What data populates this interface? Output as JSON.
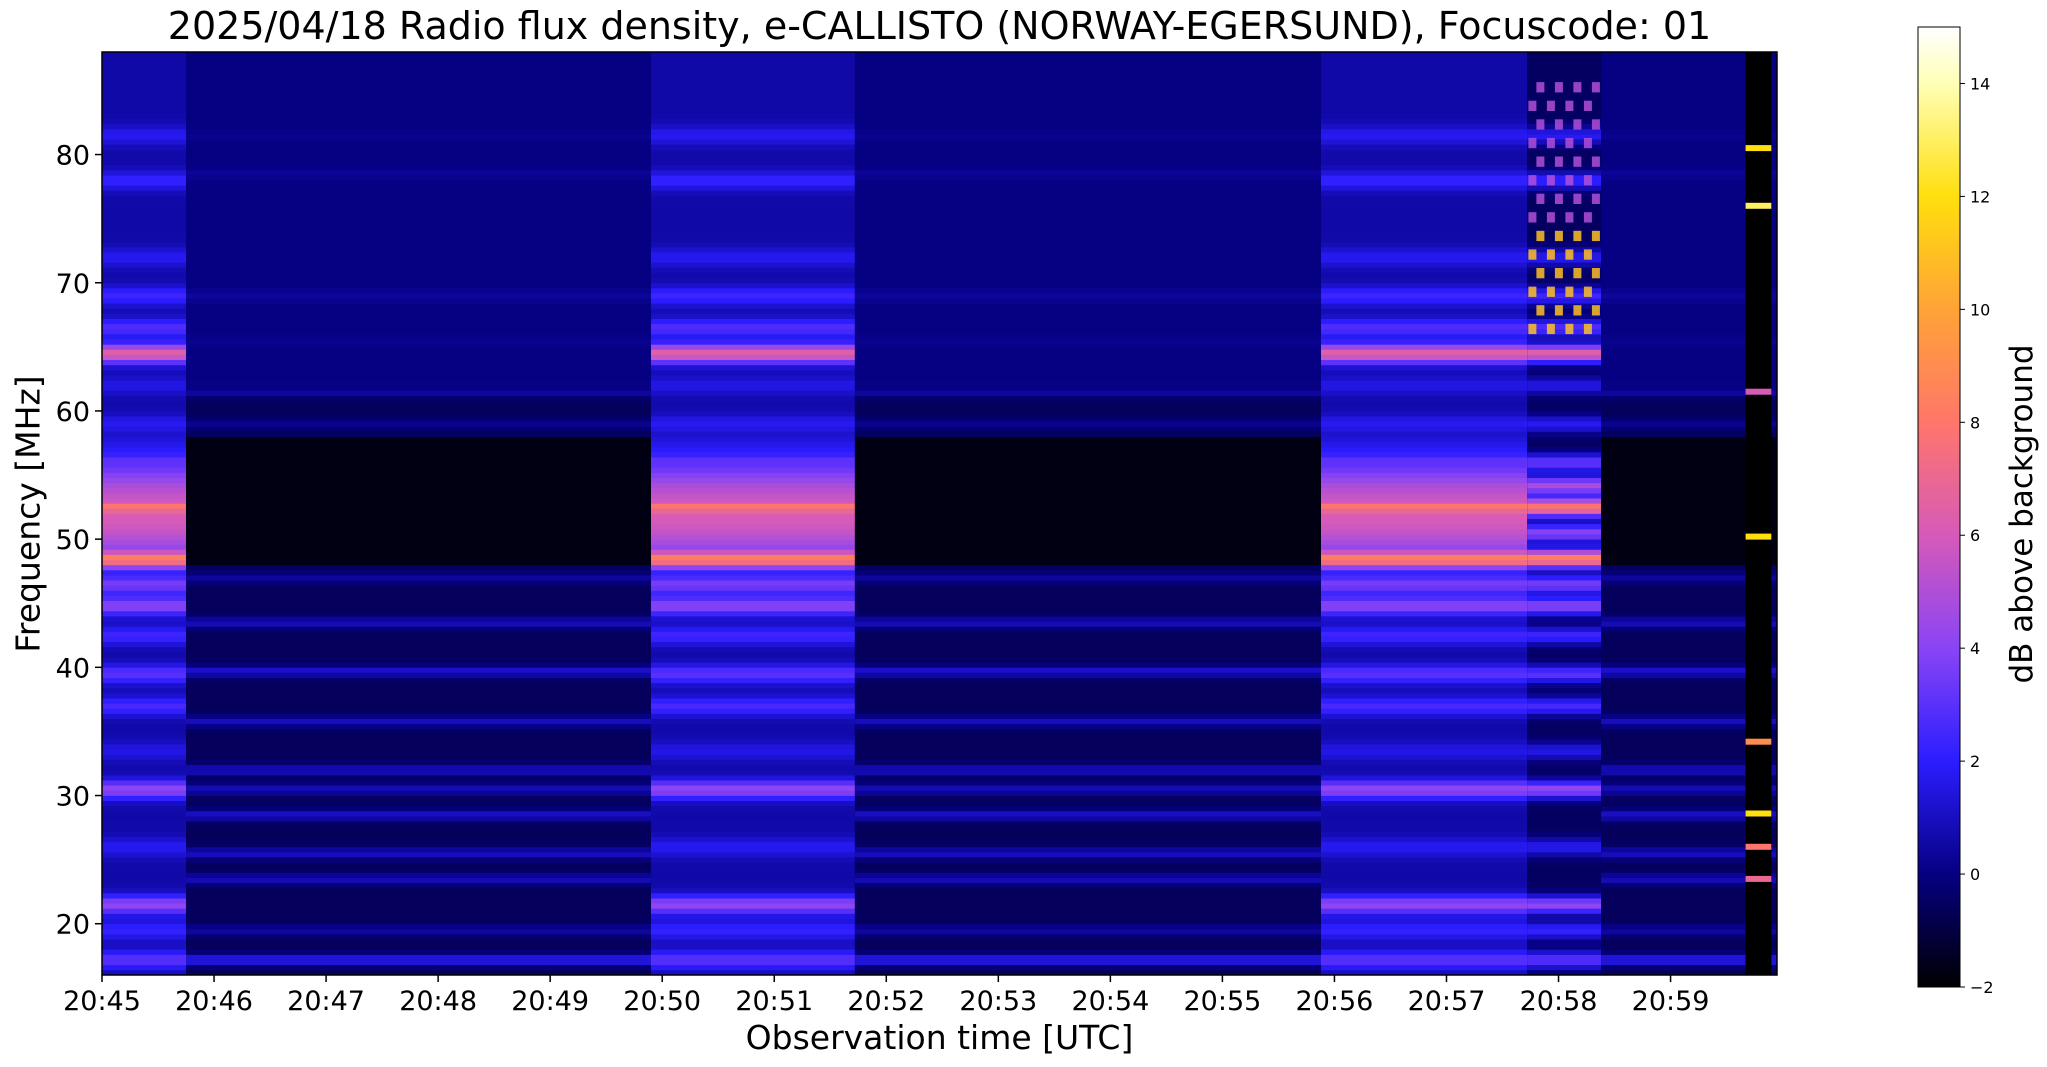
{
  "chart_data": {
    "type": "heatmap",
    "title": "2025/04/18  Radio flux density, e-CALLISTO (NORWAY-EGERSUND), Focuscode: 01",
    "xlabel": "Observation time [UTC]",
    "ylabel": "Frequency [MHz]",
    "x_tick_labels": [
      "20:45",
      "20:46",
      "20:47",
      "20:48",
      "20:49",
      "20:50",
      "20:51",
      "20:52",
      "20:53",
      "20:54",
      "20:55",
      "20:56",
      "20:57",
      "20:58",
      "20:59"
    ],
    "x_range_minutes": [
      0,
      14.95
    ],
    "y_ticks": [
      20,
      30,
      40,
      50,
      60,
      70,
      80
    ],
    "ylim": [
      16,
      88
    ],
    "colorbar": {
      "label": "dB above background",
      "colormap": "gnuplot2",
      "ticks": [
        -2,
        0,
        2,
        4,
        6,
        8,
        10,
        12,
        14
      ],
      "range": [
        -2,
        15
      ]
    },
    "segments": [
      {
        "start_min": 0.0,
        "end_min": 0.75,
        "state": "bright"
      },
      {
        "start_min": 0.75,
        "end_min": 4.9,
        "state": "quiet"
      },
      {
        "start_min": 4.9,
        "end_min": 6.72,
        "state": "bright"
      },
      {
        "start_min": 6.72,
        "end_min": 10.88,
        "state": "quiet"
      },
      {
        "start_min": 10.88,
        "end_min": 12.72,
        "state": "bright"
      },
      {
        "start_min": 12.72,
        "end_min": 13.38,
        "state": "interference"
      },
      {
        "start_min": 13.38,
        "end_min": 14.67,
        "state": "quiet"
      },
      {
        "start_min": 14.67,
        "end_min": 14.9,
        "state": "spikes"
      },
      {
        "start_min": 14.9,
        "end_min": 14.95,
        "state": "quiet"
      }
    ],
    "bright_bands": [
      {
        "mhz": 81.5,
        "db": 1.8
      },
      {
        "mhz": 78,
        "db": 2.2
      },
      {
        "mhz": 72,
        "db": 1.8
      },
      {
        "mhz": 69,
        "db": 2.4
      },
      {
        "mhz": 66.5,
        "db": 2.8
      },
      {
        "mhz": 64.5,
        "db": 6.5
      },
      {
        "mhz": 62,
        "db": 1.6
      },
      {
        "mhz": 59,
        "db": 1.8
      },
      {
        "mhz": 56,
        "db": 3.2
      },
      {
        "mhz": 54.2,
        "db": 4.8
      },
      {
        "mhz": 52.5,
        "db": 8.0
      },
      {
        "mhz": 50.5,
        "db": 4.0
      },
      {
        "mhz": 48.5,
        "db": 8.5
      },
      {
        "mhz": 46.5,
        "db": 3.6
      },
      {
        "mhz": 44.8,
        "db": 4.0
      },
      {
        "mhz": 42.5,
        "db": 2.4
      },
      {
        "mhz": 39.5,
        "db": 3.0
      },
      {
        "mhz": 37,
        "db": 2.6
      },
      {
        "mhz": 33.5,
        "db": 1.6
      },
      {
        "mhz": 30.5,
        "db": 4.2
      },
      {
        "mhz": 26,
        "db": 1.8
      },
      {
        "mhz": 21.5,
        "db": 4.2
      },
      {
        "mhz": 19.5,
        "db": 2.2
      },
      {
        "mhz": 17.2,
        "db": 3.0
      }
    ],
    "quiet_bands": [
      {
        "mhz": 81.5,
        "db": 0.2
      },
      {
        "mhz": 78.5,
        "db": 0.3
      },
      {
        "mhz": 69,
        "db": 0.4
      },
      {
        "mhz": 65.5,
        "db": 0.2
      },
      {
        "mhz": 61.5,
        "db": 0.5
      },
      {
        "mhz": 59,
        "db": 0.2
      },
      {
        "mhz": 47,
        "db": 0.4
      },
      {
        "mhz": 43.5,
        "db": 0.9
      },
      {
        "mhz": 39.7,
        "db": 1.2
      },
      {
        "mhz": 35.8,
        "db": 0.9
      },
      {
        "mhz": 32,
        "db": 1.0
      },
      {
        "mhz": 30.5,
        "db": 0.8
      },
      {
        "mhz": 28.5,
        "db": 1.1
      },
      {
        "mhz": 25.5,
        "db": 1.0
      },
      {
        "mhz": 23.5,
        "db": 0.8
      },
      {
        "mhz": 19.5,
        "db": 0.5
      },
      {
        "mhz": 17.2,
        "db": 1.8
      }
    ],
    "spikes": [
      {
        "mhz": 80.5,
        "db": 12
      },
      {
        "mhz": 76,
        "db": 13
      },
      {
        "mhz": 61.5,
        "db": 6
      },
      {
        "mhz": 50.2,
        "db": 12
      },
      {
        "mhz": 34.2,
        "db": 9
      },
      {
        "mhz": 28.6,
        "db": 12
      },
      {
        "mhz": 26,
        "db": 8
      },
      {
        "mhz": 23.5,
        "db": 7
      }
    ]
  }
}
